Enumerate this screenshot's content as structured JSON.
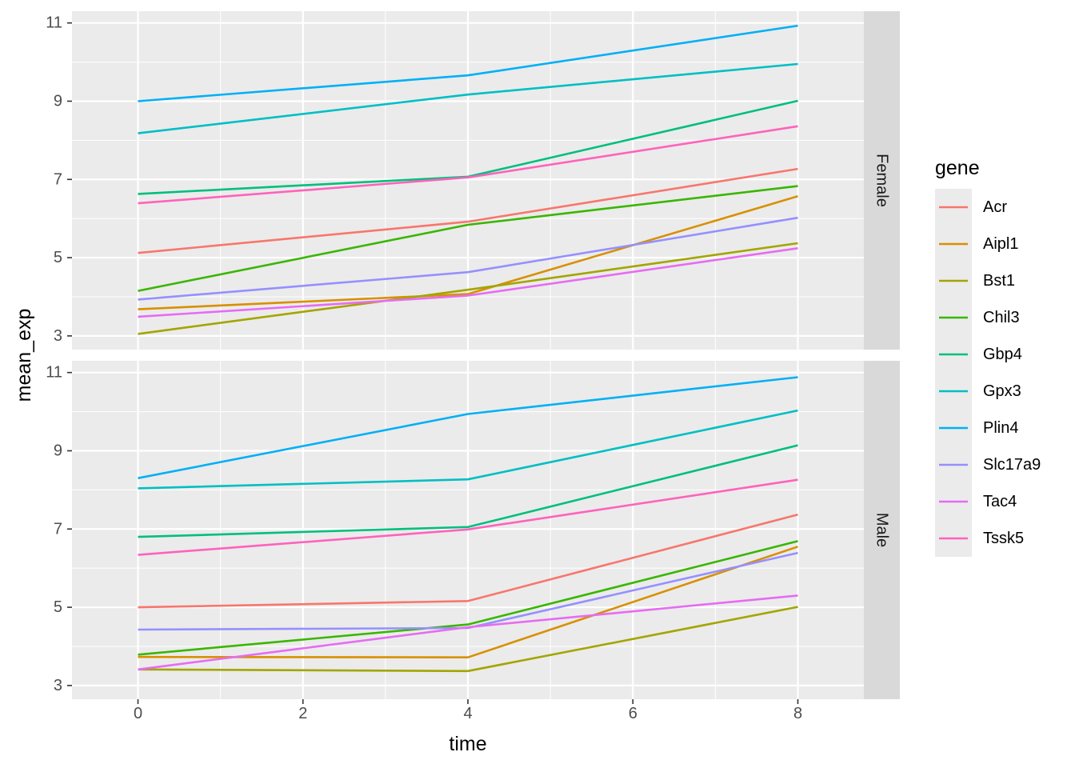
{
  "chart_data": {
    "type": "line",
    "x_label": "time",
    "y_label": "mean_exp",
    "x_ticks": [
      0,
      2,
      4,
      6,
      8
    ],
    "y_ticks": [
      3,
      5,
      7,
      9,
      11
    ],
    "xlim": [
      -0.8,
      8.8
    ],
    "ylim": [
      2.65,
      11.3
    ],
    "grid": true,
    "legend": {
      "title": "gene",
      "placement": "right",
      "items": [
        {
          "name": "Acr",
          "color": "#F8766D"
        },
        {
          "name": "Aipl1",
          "color": "#D89000"
        },
        {
          "name": "Bst1",
          "color": "#A3A500"
        },
        {
          "name": "Chil3",
          "color": "#39B600"
        },
        {
          "name": "Gbp4",
          "color": "#00BF7D"
        },
        {
          "name": "Gpx3",
          "color": "#00BFC4"
        },
        {
          "name": "Plin4",
          "color": "#00B0F6"
        },
        {
          "name": "Slc17a9",
          "color": "#9590FF"
        },
        {
          "name": "Tac4",
          "color": "#E76BF3"
        },
        {
          "name": "Tssk5",
          "color": "#FF62BC"
        }
      ]
    },
    "x": [
      0,
      4,
      8
    ],
    "panels": [
      {
        "strip": "Female",
        "series": [
          {
            "name": "Acr",
            "values": [
              5.12,
              5.92,
              7.27
            ]
          },
          {
            "name": "Aipl1",
            "values": [
              3.68,
              4.07,
              6.57
            ]
          },
          {
            "name": "Bst1",
            "values": [
              3.05,
              4.18,
              5.37
            ]
          },
          {
            "name": "Chil3",
            "values": [
              4.15,
              5.84,
              6.83
            ]
          },
          {
            "name": "Gbp4",
            "values": [
              6.63,
              7.07,
              9.01
            ]
          },
          {
            "name": "Gpx3",
            "values": [
              8.18,
              9.17,
              9.95
            ]
          },
          {
            "name": "Plin4",
            "values": [
              9.0,
              9.66,
              10.93
            ]
          },
          {
            "name": "Slc17a9",
            "values": [
              3.93,
              4.63,
              6.02
            ]
          },
          {
            "name": "Tac4",
            "values": [
              3.49,
              4.03,
              5.24
            ]
          },
          {
            "name": "Tssk5",
            "values": [
              6.39,
              7.05,
              8.36
            ]
          }
        ]
      },
      {
        "strip": "Male",
        "series": [
          {
            "name": "Acr",
            "values": [
              5.0,
              5.16,
              7.37
            ]
          },
          {
            "name": "Aipl1",
            "values": [
              3.73,
              3.72,
              6.55
            ]
          },
          {
            "name": "Bst1",
            "values": [
              3.41,
              3.37,
              5.01
            ]
          },
          {
            "name": "Chil3",
            "values": [
              3.79,
              4.56,
              6.69
            ]
          },
          {
            "name": "Gbp4",
            "values": [
              6.8,
              7.05,
              9.14
            ]
          },
          {
            "name": "Gpx3",
            "values": [
              8.04,
              8.27,
              10.03
            ]
          },
          {
            "name": "Plin4",
            "values": [
              8.3,
              9.94,
              10.88
            ]
          },
          {
            "name": "Slc17a9",
            "values": [
              4.43,
              4.47,
              6.39
            ]
          },
          {
            "name": "Tac4",
            "values": [
              3.41,
              4.49,
              5.3
            ]
          },
          {
            "name": "Tssk5",
            "values": [
              6.34,
              6.99,
              8.26
            ]
          }
        ]
      }
    ]
  }
}
